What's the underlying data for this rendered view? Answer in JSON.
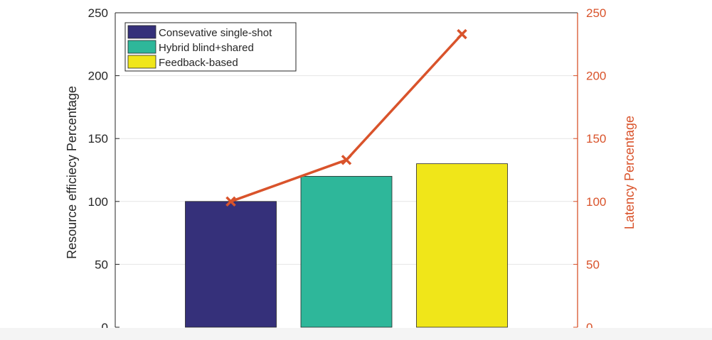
{
  "chart_data": {
    "type": "bar",
    "categories": [
      "Consevative single-shot",
      "Hybrid blind+shared",
      "Feedback-based"
    ],
    "series": [
      {
        "name": "",
        "axis": "left",
        "type": "bar",
        "values": [
          100,
          120,
          130
        ],
        "colors": [
          "#35307a",
          "#2eb79a",
          "#f0e619"
        ]
      },
      {
        "name": "",
        "axis": "right",
        "type": "line",
        "marker": "x",
        "color": "#d9532b",
        "values": [
          100,
          133,
          233
        ]
      }
    ],
    "legend": {
      "placement": "top-left",
      "entries": [
        {
          "label": "Consevative single-shot",
          "color": "#35307a"
        },
        {
          "label": "Hybrid blind+shared",
          "color": "#2eb79a"
        },
        {
          "label": "Feedback-based",
          "color": "#f0e619"
        }
      ]
    },
    "ylabel": "Resource efficiecy Percentage",
    "y2label": "Latency Percentage",
    "ylim": [
      0,
      250
    ],
    "y2lim": [
      0,
      250
    ],
    "yticks": [
      "0",
      "50",
      "100",
      "150",
      "200",
      "250"
    ],
    "y2ticks": [
      "0",
      "50",
      "100",
      "150",
      "200",
      "250"
    ],
    "grid": "horizontal",
    "colors": {
      "left_axis": "#262626",
      "right_axis": "#d9532b"
    }
  }
}
